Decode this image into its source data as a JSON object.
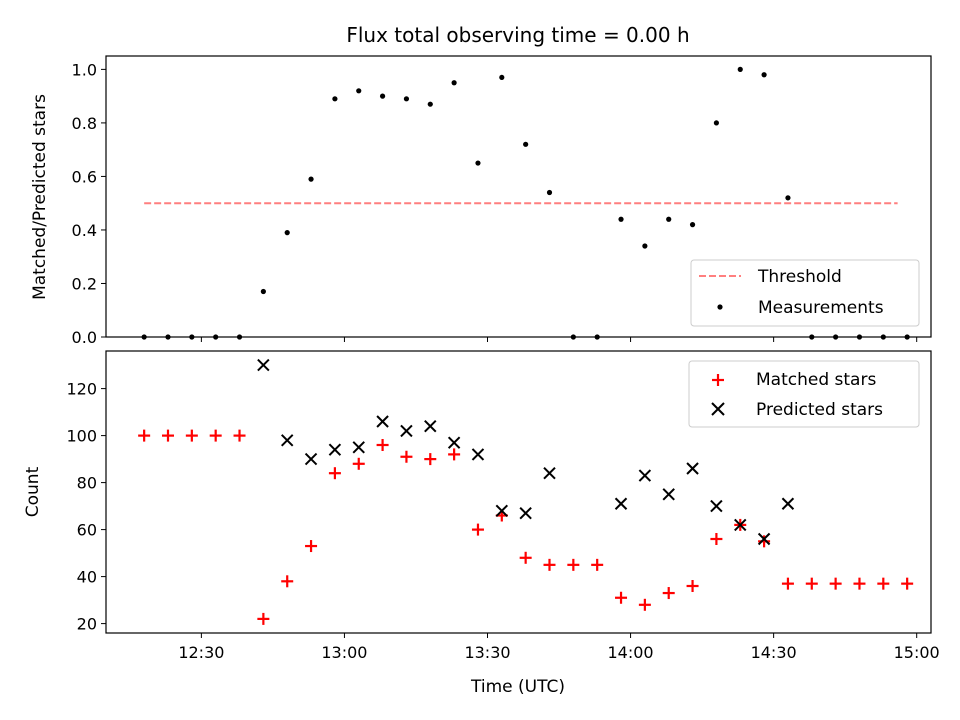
{
  "chart_data": [
    {
      "type": "scatter",
      "title": "Flux total observing time = 0.00 h",
      "xlabel": "",
      "ylabel": "Matched/Predicted stars",
      "ylim": [
        0.0,
        1.05
      ],
      "yticks": [
        "0.0",
        "0.2",
        "0.4",
        "0.6",
        "0.8",
        "1.0"
      ],
      "xticks": [
        "12:30",
        "13:00",
        "13:30",
        "14:00",
        "14:30",
        "15:00"
      ],
      "xlim": [
        "12:10",
        "15:03"
      ],
      "legend_position": "bottom-right",
      "grid": false,
      "series": [
        {
          "name": "Threshold",
          "kind": "dashed-line",
          "color": "#ff7f7f",
          "x": [
            "12:18",
            "14:56"
          ],
          "y": [
            0.5,
            0.5
          ]
        },
        {
          "name": "Measurements",
          "kind": "dot",
          "color": "#000000",
          "x": [
            "12:18",
            "12:23",
            "12:28",
            "12:33",
            "12:38",
            "12:43",
            "12:48",
            "12:53",
            "12:58",
            "13:03",
            "13:08",
            "13:13",
            "13:18",
            "13:23",
            "13:28",
            "13:33",
            "13:38",
            "13:43",
            "13:48",
            "13:53",
            "13:58",
            "14:03",
            "14:08",
            "14:13",
            "14:18",
            "14:23",
            "14:28",
            "14:33",
            "14:38",
            "14:43",
            "14:48",
            "14:53",
            "14:58"
          ],
          "y": [
            0.0,
            0.0,
            0.0,
            0.0,
            0.0,
            0.17,
            0.39,
            0.59,
            0.89,
            0.92,
            0.9,
            0.89,
            0.87,
            0.95,
            0.65,
            0.97,
            0.72,
            0.54,
            0.0,
            0.0,
            0.44,
            0.34,
            0.44,
            0.42,
            0.8,
            1.0,
            0.98,
            0.52,
            0.0,
            0.0,
            0.0,
            0.0,
            0.0
          ]
        }
      ]
    },
    {
      "type": "scatter",
      "title": "",
      "xlabel": "Time (UTC)",
      "ylabel": "Count",
      "ylim": [
        16,
        136
      ],
      "yticks": [
        "20",
        "40",
        "60",
        "80",
        "100",
        "120"
      ],
      "xticks": [
        "12:30",
        "13:00",
        "13:30",
        "14:00",
        "14:30",
        "15:00"
      ],
      "xlim": [
        "12:10",
        "15:03"
      ],
      "legend_position": "top-right",
      "grid": false,
      "series": [
        {
          "name": "Matched stars",
          "kind": "plus",
          "color": "#ff0000",
          "x": [
            "12:18",
            "12:23",
            "12:28",
            "12:33",
            "12:38",
            "12:43",
            "12:48",
            "12:53",
            "12:58",
            "13:03",
            "13:08",
            "13:13",
            "13:18",
            "13:23",
            "13:28",
            "13:33",
            "13:38",
            "13:43",
            "13:48",
            "13:53",
            "13:58",
            "14:03",
            "14:08",
            "14:13",
            "14:18",
            "14:23",
            "14:28",
            "14:33",
            "14:38",
            "14:43",
            "14:48",
            "14:53",
            "14:58"
          ],
          "y": [
            100,
            100,
            100,
            100,
            100,
            22,
            38,
            53,
            84,
            88,
            96,
            91,
            90,
            92,
            60,
            66,
            48,
            45,
            45,
            45,
            31,
            28,
            33,
            36,
            56,
            62,
            55,
            37,
            37,
            37,
            37,
            37,
            37
          ]
        },
        {
          "name": "Predicted stars",
          "kind": "x",
          "color": "#000000",
          "x": [
            "12:43",
            "12:48",
            "12:53",
            "12:58",
            "13:03",
            "13:08",
            "13:13",
            "13:18",
            "13:23",
            "13:28",
            "13:33",
            "13:38",
            "13:43",
            "13:58",
            "14:03",
            "14:08",
            "14:13",
            "14:18",
            "14:23",
            "14:28",
            "14:33"
          ],
          "y": [
            130,
            98,
            90,
            94,
            95,
            106,
            102,
            104,
            97,
            92,
            68,
            67,
            84,
            71,
            83,
            75,
            86,
            70,
            62,
            56,
            71
          ]
        }
      ]
    }
  ]
}
